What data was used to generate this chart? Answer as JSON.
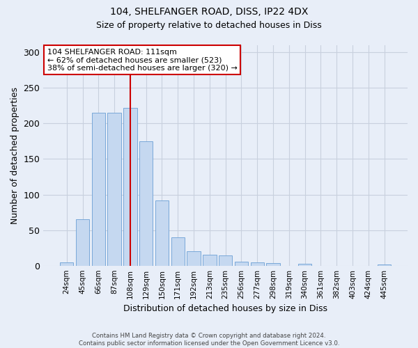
{
  "title_line1": "104, SHELFANGER ROAD, DISS, IP22 4DX",
  "title_line2": "Size of property relative to detached houses in Diss",
  "xlabel": "Distribution of detached houses by size in Diss",
  "ylabel": "Number of detached properties",
  "categories": [
    "24sqm",
    "45sqm",
    "66sqm",
    "87sqm",
    "108sqm",
    "129sqm",
    "150sqm",
    "171sqm",
    "192sqm",
    "213sqm",
    "235sqm",
    "256sqm",
    "277sqm",
    "298sqm",
    "319sqm",
    "340sqm",
    "361sqm",
    "382sqm",
    "403sqm",
    "424sqm",
    "445sqm"
  ],
  "values": [
    5,
    65,
    215,
    215,
    222,
    175,
    92,
    40,
    20,
    15,
    14,
    6,
    5,
    4,
    0,
    3,
    0,
    0,
    0,
    0,
    2
  ],
  "bar_color": "#c5d8f0",
  "bar_edge_color": "#6a9fd4",
  "vline_x_index": 4,
  "vline_color": "#cc0000",
  "ylim": [
    0,
    310
  ],
  "yticks": [
    0,
    50,
    100,
    150,
    200,
    250,
    300
  ],
  "annotation_title": "104 SHELFANGER ROAD: 111sqm",
  "annotation_line1": "← 62% of detached houses are smaller (523)",
  "annotation_line2": "38% of semi-detached houses are larger (320) →",
  "annotation_box_color": "#ffffff",
  "annotation_border_color": "#cc0000",
  "footer_line1": "Contains HM Land Registry data © Crown copyright and database right 2024.",
  "footer_line2": "Contains public sector information licensed under the Open Government Licence v3.0.",
  "background_color": "#e8eef8",
  "grid_color": "#c8d0de"
}
